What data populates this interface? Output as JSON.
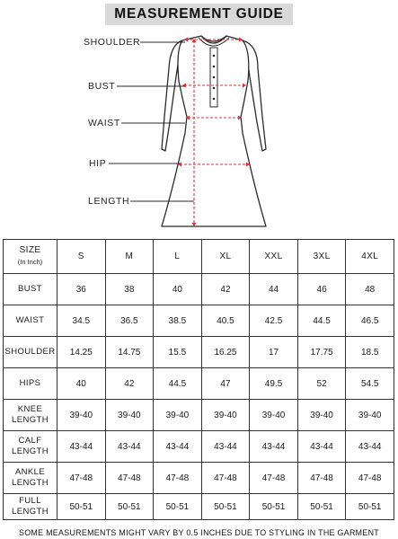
{
  "title": "MEASUREMENT GUIDE",
  "diagram": {
    "labels": {
      "shoulder": "SHOULDER",
      "bust": "BUST",
      "waist": "WAIST",
      "hip": "HIP",
      "length": "LENGTH"
    }
  },
  "table": {
    "header": {
      "size_label": "SIZE",
      "size_unit": "(In Inch)",
      "sizes": [
        "S",
        "M",
        "L",
        "XL",
        "XXL",
        "3XL",
        "4XL"
      ]
    },
    "rows": [
      {
        "label_line1": "BUST",
        "label_line2": "",
        "values": [
          "36",
          "38",
          "40",
          "42",
          "44",
          "46",
          "48"
        ]
      },
      {
        "label_line1": "WAIST",
        "label_line2": "",
        "values": [
          "34.5",
          "36.5",
          "38.5",
          "40.5",
          "42.5",
          "44.5",
          "46.5"
        ]
      },
      {
        "label_line1": "SHOULDER",
        "label_line2": "",
        "values": [
          "14.25",
          "14.75",
          "15.5",
          "16.25",
          "17",
          "17.75",
          "18.5"
        ]
      },
      {
        "label_line1": "HIPS",
        "label_line2": "",
        "values": [
          "40",
          "42",
          "44.5",
          "47",
          "49.5",
          "52",
          "54.5"
        ]
      },
      {
        "label_line1": "KNEE",
        "label_line2": "LENGTH",
        "values": [
          "39-40",
          "39-40",
          "39-40",
          "39-40",
          "39-40",
          "39-40",
          "39-40"
        ]
      },
      {
        "label_line1": "CALF",
        "label_line2": "LENGTH",
        "values": [
          "43-44",
          "43-44",
          "43-44",
          "43-44",
          "43-44",
          "43-44",
          "43-44"
        ]
      },
      {
        "label_line1": "ANKLE",
        "label_line2": "LENGTH",
        "values": [
          "47-48",
          "47-48",
          "47-48",
          "47-48",
          "47-48",
          "47-48",
          "47-48"
        ]
      },
      {
        "label_line1": "FULL",
        "label_line2": "LENGTH",
        "values": [
          "50-51",
          "50-51",
          "50-51",
          "50-51",
          "50-51",
          "50-51",
          "50-51"
        ]
      }
    ]
  },
  "footnote": "SOME MEASUREMENTS MIGHT VARY BY 0.5 INCHES DUE TO STYLING IN THE GARMENT",
  "colors": {
    "title_bg": "#d9d9d9",
    "measure_line": "#e0303a",
    "outline": "#2b2b2b"
  }
}
